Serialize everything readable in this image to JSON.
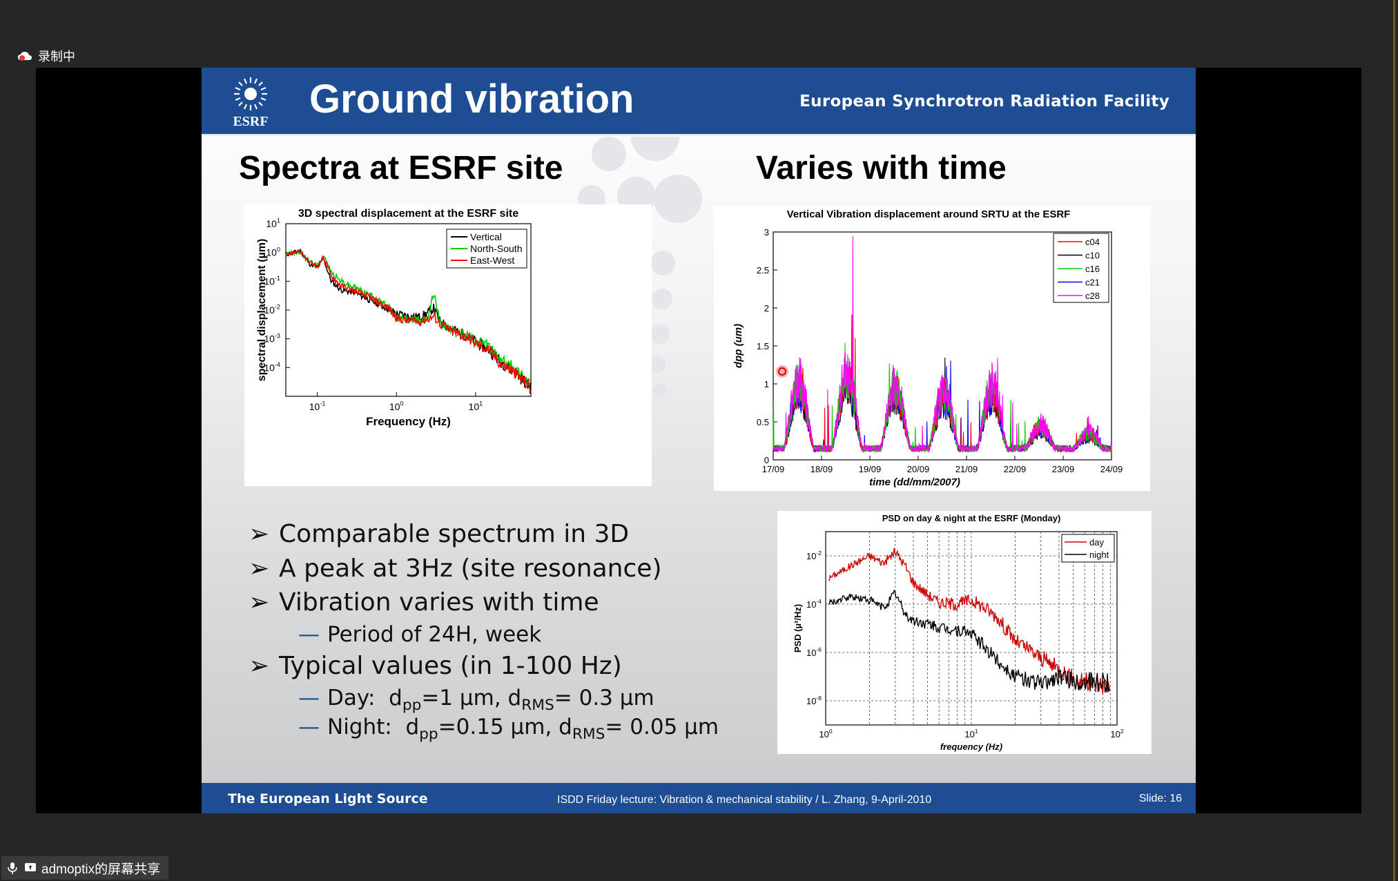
{
  "recording": {
    "label": "录制中"
  },
  "share_bar": {
    "label": "admoptix的屏幕共享"
  },
  "slide": {
    "title": "Ground vibration",
    "facility": "European Synchrotron Radiation Facility",
    "logo_text": "ESRF",
    "left_heading": "Spectra at ESRF site",
    "right_heading": "Varies with time",
    "bullets": {
      "b1": "Comparable spectrum in 3D",
      "b2": "A peak at 3Hz (site resonance)",
      "b3": "Vibration varies with time",
      "b3_sub": "Period of 24H, week",
      "b4": "Typical values (in 1-100 Hz)",
      "b4_day_label": "Day:",
      "b4_day_dpp": "=1 µm, d",
      "b4_day_rms": "= 0.3 µm",
      "b4_night_label": "Night:",
      "b4_night_dpp": "=0.15 µm, d",
      "b4_night_rms": "= 0.05 µm",
      "sub_pp": "pp",
      "sub_rms": "RMS",
      "d": "d"
    },
    "footer": {
      "left": "The European Light Source",
      "center": "ISDD Friday lecture: Vibration & mechanical stability / L. Zhang,  9-April-2010",
      "slide": "Slide: 16"
    }
  },
  "chart_data": [
    {
      "type": "line",
      "title": "3D spectral displacement at the ESRF site",
      "xlabel": "Frequency  (Hz)",
      "ylabel": "spectral displacement (µm)",
      "xscale": "log",
      "yscale": "log",
      "xlim": [
        0.04,
        50
      ],
      "ylim": [
        1e-05,
        10
      ],
      "xticks": [
        "10^-1",
        "10^0",
        "10^1"
      ],
      "yticks": [
        "10^1",
        "10^0",
        "10^-1",
        "10^-2",
        "10^-3",
        "10^-4"
      ],
      "legend": "top-right",
      "series": [
        {
          "name": "Vertical",
          "color": "#000000",
          "x": [
            0.04,
            0.06,
            0.08,
            0.1,
            0.12,
            0.15,
            0.2,
            0.3,
            0.5,
            0.8,
            1,
            1.5,
            2,
            2.5,
            3,
            3.5,
            5,
            8,
            10,
            15,
            20,
            30,
            50
          ],
          "y": [
            0.8,
            1.2,
            0.4,
            0.3,
            0.6,
            0.1,
            0.05,
            0.04,
            0.02,
            0.011,
            0.0075,
            0.006,
            0.0058,
            0.008,
            0.012,
            0.004,
            0.0022,
            0.0012,
            0.0008,
            0.0004,
            0.00017,
            8e-05,
            2e-05
          ]
        },
        {
          "name": "North-South",
          "color": "#00cc00",
          "x": [
            0.04,
            0.06,
            0.08,
            0.1,
            0.12,
            0.15,
            0.2,
            0.3,
            0.5,
            0.8,
            1,
            1.5,
            2,
            2.5,
            3,
            3.5,
            5,
            8,
            10,
            15,
            20,
            30,
            50
          ],
          "y": [
            0.9,
            1.0,
            0.5,
            0.35,
            0.8,
            0.2,
            0.1,
            0.06,
            0.03,
            0.012,
            0.0055,
            0.0045,
            0.0043,
            0.006,
            0.045,
            0.004,
            0.002,
            0.0013,
            0.0009,
            0.0005,
            0.0002,
            0.0001,
            3e-05
          ]
        },
        {
          "name": "East-West",
          "color": "#ff0000",
          "x": [
            0.04,
            0.06,
            0.08,
            0.1,
            0.12,
            0.15,
            0.2,
            0.3,
            0.5,
            0.8,
            1,
            1.5,
            2,
            2.5,
            3,
            3.5,
            5,
            8,
            10,
            15,
            20,
            30,
            50
          ],
          "y": [
            0.85,
            1.1,
            0.45,
            0.32,
            0.7,
            0.15,
            0.07,
            0.045,
            0.025,
            0.011,
            0.005,
            0.0042,
            0.004,
            0.005,
            0.006,
            0.0035,
            0.0018,
            0.0011,
            0.0007,
            0.0004,
            0.00015,
            7e-05,
            2e-05
          ]
        }
      ]
    },
    {
      "type": "line",
      "title": "Vertical Vibration displacement around SRTU at the ESRF",
      "xlabel": "time  (dd/mm/2007)",
      "ylabel": "dpp (um)",
      "xticks": [
        "17/09",
        "18/09",
        "19/09",
        "20/09",
        "21/09",
        "22/09",
        "23/09",
        "24/09"
      ],
      "yticks": [
        "0",
        "0.5",
        "1",
        "1.5",
        "2",
        "2.5",
        "3"
      ],
      "ylim": [
        0,
        3
      ],
      "legend": "top-right",
      "series": [
        {
          "name": "c04",
          "color": "#ff0000"
        },
        {
          "name": "c10",
          "color": "#000000"
        },
        {
          "name": "c16",
          "color": "#00cc00"
        },
        {
          "name": "c21",
          "color": "#0000ff"
        },
        {
          "name": "c28",
          "color": "#ff00ff"
        }
      ],
      "daily_peak_dpp": [
        1.0,
        1.1,
        0.95,
        0.9,
        0.95,
        0.45,
        0.35
      ],
      "night_min_dpp": 0.15,
      "max_spike_dpp": 3.0
    },
    {
      "type": "line",
      "title": "PSD on day & night at the ESRF (Monday)",
      "xlabel": "frequency  (Hz)",
      "ylabel": "PSD  (µ²/Hz)",
      "xscale": "log",
      "yscale": "log",
      "xlim": [
        1,
        100
      ],
      "ylim": [
        1e-09,
        0.1
      ],
      "xticks": [
        "10^0",
        "10^1",
        "10^2"
      ],
      "yticks": [
        "10^-2",
        "10^-4",
        "10^-6",
        "10^-8"
      ],
      "legend": "top-right",
      "series": [
        {
          "name": "day",
          "color": "#cc0000",
          "x": [
            1,
            1.5,
            2,
            2.5,
            3,
            3.5,
            4,
            5,
            6,
            8,
            10,
            12,
            15,
            20,
            30,
            40,
            50,
            70,
            100
          ],
          "y": [
            0.001,
            0.004,
            0.01,
            0.005,
            0.015,
            0.004,
            0.0008,
            0.00025,
            0.00012,
            0.0001,
            0.00015,
            8e-05,
            3e-05,
            3e-06,
            6e-07,
            2e-07,
            8e-08,
            5e-08,
            4e-08
          ]
        },
        {
          "name": "night",
          "color": "#000000",
          "x": [
            1,
            1.5,
            2,
            2.5,
            3,
            3.5,
            4,
            5,
            6,
            8,
            10,
            12,
            15,
            20,
            30,
            40,
            50,
            70,
            100
          ],
          "y": [
            0.0001,
            0.0002,
            0.00015,
            7e-05,
            0.0003,
            4e-05,
            2e-05,
            1.5e-05,
            1e-05,
            8e-06,
            6e-06,
            2e-06,
            5e-07,
            1e-07,
            5e-08,
            1e-07,
            6e-08,
            6e-08,
            5e-08
          ]
        }
      ]
    }
  ]
}
